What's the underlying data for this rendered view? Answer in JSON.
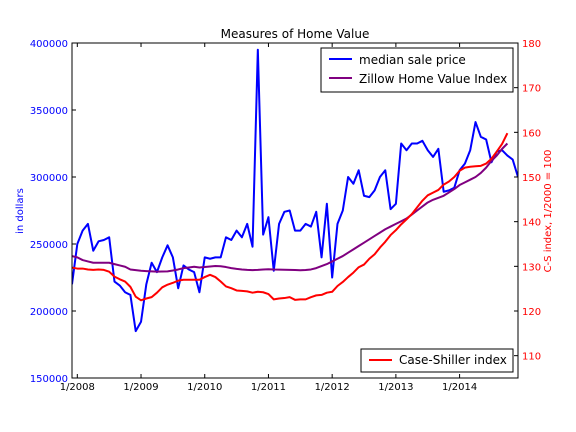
{
  "chart_data": {
    "type": "line",
    "title": "Measures of Home Value",
    "xlabel": "",
    "ylabel_left": "in dollars",
    "ylabel_right": "C-S index, 1/2000 = 100",
    "x_start": "2007-12",
    "x_ticks": [
      "1/2008",
      "1/2009",
      "1/2010",
      "1/2011",
      "1/2012",
      "1/2013",
      "1/2014"
    ],
    "y_left_range": [
      150000,
      400000
    ],
    "y_left_ticks": [
      "150000",
      "200000",
      "250000",
      "300000",
      "350000",
      "400000"
    ],
    "y_right_range": [
      105,
      180
    ],
    "y_right_ticks": [
      "110",
      "120",
      "130",
      "140",
      "150",
      "160",
      "170",
      "180"
    ],
    "colors": {
      "median": "#0000ff",
      "zillow": "#800080",
      "case_shiller": "#ff0000",
      "left_axis": "#0000ff",
      "right_axis": "#ff0000"
    },
    "legend_upper": {
      "placement": "top-right",
      "entries": [
        {
          "label": "median sale price",
          "series": "median"
        },
        {
          "label": "Zillow Home Value Index",
          "series": "zillow"
        }
      ]
    },
    "legend_lower": {
      "placement": "bottom-right",
      "entries": [
        {
          "label": "Case-Shiller index",
          "series": "case_shiller"
        }
      ]
    },
    "series": [
      {
        "name": "median sale price",
        "key": "median",
        "axis": "left",
        "values": [
          220000,
          250000,
          260000,
          265000,
          245000,
          252000,
          253000,
          255000,
          222000,
          219000,
          214000,
          212000,
          185000,
          192000,
          220000,
          236000,
          229000,
          240000,
          249000,
          240000,
          217000,
          234000,
          231000,
          229000,
          214000,
          240000,
          239000,
          240000,
          240000,
          255000,
          253000,
          260000,
          255000,
          265000,
          248000,
          395000,
          257000,
          270000,
          230000,
          265000,
          274000,
          275000,
          260000,
          260000,
          265000,
          263000,
          274000,
          240000,
          280000,
          225000,
          265000,
          275000,
          300000,
          295000,
          305000,
          286000,
          285000,
          290000,
          300000,
          305000,
          276000,
          280000,
          325000,
          320000,
          325000,
          325000,
          327000,
          320000,
          315000,
          321000,
          289000,
          290000,
          292000,
          305000,
          310000,
          320000,
          341000,
          330000,
          328000,
          311000,
          319000,
          320000,
          316000,
          313000,
          300000
        ]
      },
      {
        "name": "Zillow Home Value Index",
        "key": "zillow",
        "axis": "left",
        "values": [
          241000,
          240000,
          238000,
          237000,
          236000,
          236000,
          236000,
          236000,
          235000,
          234000,
          233000,
          231000,
          230500,
          230000,
          229800,
          229600,
          229400,
          229500,
          229600,
          230200,
          231000,
          232000,
          232500,
          233000,
          232500,
          232800,
          233200,
          233600,
          233400,
          232800,
          232000,
          231400,
          231000,
          230700,
          230500,
          230700,
          231000,
          231200,
          231000,
          230900,
          230800,
          230700,
          230600,
          230400,
          230600,
          231000,
          232000,
          233500,
          235000,
          237000,
          239000,
          241000,
          243500,
          246000,
          248500,
          251000,
          253500,
          256000,
          258500,
          261000,
          263000,
          265000,
          267000,
          269000,
          272000,
          275000,
          278000,
          281000,
          283000,
          284500,
          286000,
          288500,
          291000,
          294000,
          296000,
          298000,
          300000,
          303000,
          307000,
          312000,
          316000,
          321000,
          325000
        ]
      },
      {
        "name": "Case-Shiller index",
        "key": "case_shiller",
        "axis": "right",
        "values": [
          129.7,
          129.5,
          129.5,
          129.3,
          129.2,
          129.3,
          129.2,
          128.8,
          127.7,
          127.1,
          126.6,
          125.4,
          123.2,
          122.4,
          122.8,
          123.1,
          124.1,
          125.3,
          125.9,
          126.3,
          126.8,
          127.0,
          127.0,
          127.0,
          127.0,
          127.6,
          128.1,
          127.6,
          126.6,
          125.5,
          125.1,
          124.6,
          124.5,
          124.4,
          124.1,
          124.3,
          124.2,
          123.8,
          122.6,
          122.8,
          122.9,
          123.1,
          122.5,
          122.6,
          122.6,
          123.1,
          123.5,
          123.6,
          124.1,
          124.3,
          125.6,
          126.5,
          127.6,
          128.6,
          129.8,
          130.4,
          131.7,
          132.7,
          134.2,
          135.5,
          137.0,
          138.1,
          139.4,
          140.5,
          141.7,
          143.2,
          144.7,
          145.9,
          146.5,
          147.1,
          148.3,
          149.0,
          150.0,
          151.4,
          152.1,
          152.3,
          152.4,
          152.5,
          153.0,
          154.1,
          155.7,
          157.4,
          159.8
        ]
      }
    ]
  }
}
